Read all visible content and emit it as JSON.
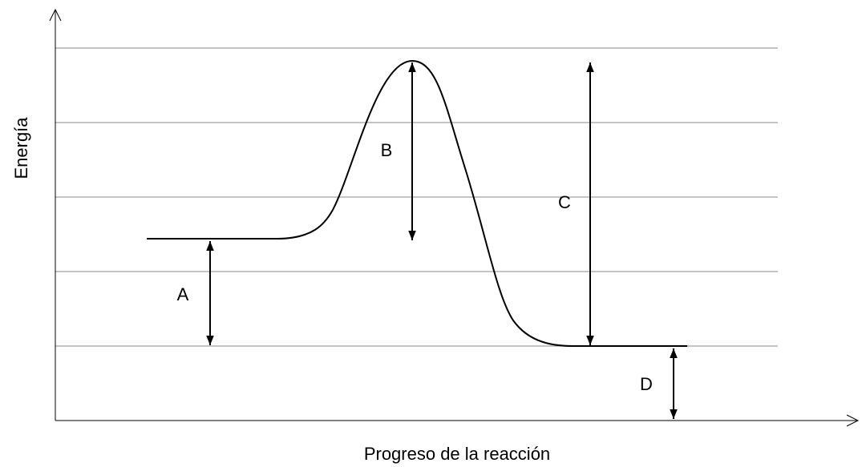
{
  "diagram": {
    "y_axis_label": "Energía",
    "x_axis_label": "Progreso de la reacción",
    "labels": [
      "A",
      "B",
      "C",
      "D"
    ]
  }
}
